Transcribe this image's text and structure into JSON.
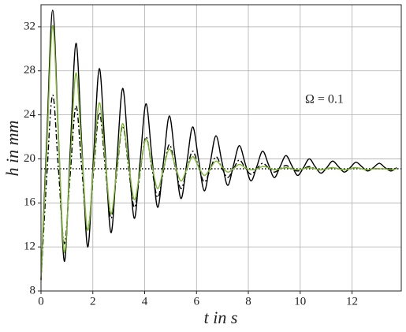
{
  "chart_data": {
    "type": "line",
    "xlabel": "t in s",
    "ylabel": "h in mm",
    "annotation": "Ω = 0.1",
    "xlim": [
      0,
      13.9
    ],
    "ylim": [
      8,
      34
    ],
    "xticks": [
      0,
      2,
      4,
      6,
      8,
      10,
      12
    ],
    "yticks": [
      8,
      12,
      16,
      20,
      24,
      28,
      32
    ],
    "grid": true,
    "hline": {
      "value": 19.1,
      "color": "#000000",
      "dash": "dotted"
    },
    "x": [
      0,
      0.225,
      0.45,
      0.675,
      0.9,
      1.125,
      1.35,
      1.575,
      1.8,
      2.025,
      2.25,
      2.475,
      2.7,
      2.925,
      3.15,
      3.375,
      3.6,
      3.825,
      4.05,
      4.275,
      4.5,
      4.725,
      4.95,
      5.175,
      5.4,
      5.625,
      5.85,
      6.075,
      6.3,
      6.525,
      6.75,
      6.975,
      7.2,
      7.425,
      7.65,
      7.875,
      8.1,
      8.325,
      8.55,
      8.775,
      9.0,
      9.225,
      9.45,
      9.675,
      9.9,
      10.125,
      10.35,
      10.575,
      10.8,
      11.025,
      11.25,
      11.475,
      11.7,
      11.925,
      12.15,
      12.375,
      12.6,
      12.825,
      13.05,
      13.275,
      13.5,
      13.725
    ],
    "series": [
      {
        "color": "#000000",
        "dash": "solid",
        "values": [
          9.0,
          22,
          33.5,
          22,
          10.7,
          20.6,
          30.5,
          21.2,
          12.0,
          20.1,
          28.2,
          20.7,
          13.3,
          19.8,
          26.4,
          20.5,
          14.6,
          19.8,
          25.0,
          20.3,
          15.6,
          19.7,
          23.9,
          20.1,
          16.4,
          19.6,
          22.9,
          20.0,
          17.1,
          19.6,
          22.1,
          19.8,
          17.6,
          19.4,
          21.2,
          19.6,
          18.0,
          19.3,
          20.7,
          19.5,
          18.3,
          19.3,
          20.3,
          19.4,
          18.5,
          19.2,
          20.0,
          19.3,
          18.7,
          19.2,
          19.8,
          19.3,
          18.8,
          19.2,
          19.7,
          19.3,
          18.9,
          19.2,
          19.6,
          19.2,
          18.9,
          19.2
        ]
      },
      {
        "color": "#000000",
        "dash": "dashdot",
        "values": [
          9.0,
          18.5,
          25.8,
          19.0,
          12.3,
          18.5,
          24.8,
          19.1,
          13.5,
          18.8,
          24.2,
          19.4,
          14.6,
          18.8,
          23.0,
          19.3,
          15.6,
          18.8,
          22.0,
          19.2,
          16.5,
          18.9,
          21.3,
          19.3,
          17.3,
          19.0,
          20.7,
          19.3,
          17.9,
          19.0,
          20.2,
          19.2,
          18.3,
          19.1,
          19.9,
          19.2,
          18.6,
          19.1,
          19.6,
          19.2,
          18.8,
          19.1,
          19.4,
          19.1,
          18.9,
          19.1,
          19.3,
          19.1,
          19.0,
          19.1,
          19.2,
          19.1,
          19.0,
          19.1,
          19.2,
          19.1,
          19.0,
          19.1,
          19.1,
          19.1,
          19.1,
          19.1
        ]
      },
      {
        "color": "#7cb82f",
        "dash": "solid",
        "values": [
          9.0,
          21.0,
          32.1,
          21.8,
          11.5,
          19.6,
          27.8,
          20.6,
          13.5,
          19.3,
          25.1,
          20.0,
          15.0,
          19.1,
          23.2,
          19.7,
          16.3,
          19.0,
          21.8,
          19.5,
          17.3,
          19.1,
          20.9,
          19.4,
          18.0,
          19.1,
          20.2,
          19.3,
          18.5,
          19.1,
          19.8,
          19.3,
          18.8,
          19.1,
          19.5,
          19.2,
          19.0,
          19.1,
          19.3,
          19.2,
          19.0,
          19.1,
          19.2,
          19.1,
          19.0,
          19.1,
          19.2,
          19.1,
          19.0,
          19.1,
          19.2,
          19.1,
          19.0,
          19.1,
          19.2,
          19.1,
          19.0,
          19.1,
          19.1,
          19.1,
          19.0,
          19.1
        ]
      }
    ]
  }
}
